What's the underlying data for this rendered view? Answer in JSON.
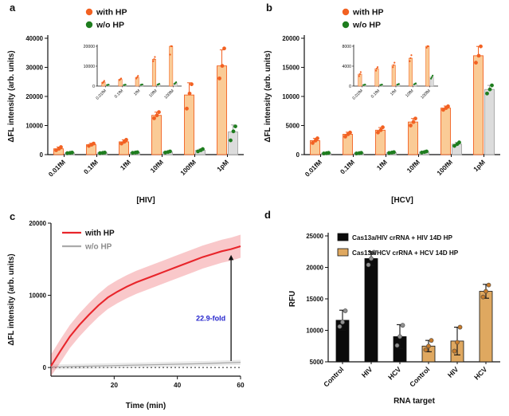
{
  "panels": {
    "a": {
      "label": "a"
    },
    "b": {
      "label": "b"
    },
    "c": {
      "label": "c"
    },
    "d": {
      "label": "d"
    }
  },
  "chart_data": [
    {
      "id": "a",
      "type": "grouped_bar_scatter",
      "xlabel": "[HIV]",
      "ylabel": "ΔFL intensity (arb. units)",
      "categories": [
        "0.01fM",
        "0.1fM",
        "1fM",
        "10fM",
        "100fM",
        "1pM"
      ],
      "ylim": [
        0,
        40000
      ],
      "yticks": [
        0,
        10000,
        20000,
        30000,
        40000
      ],
      "legend": [
        {
          "label": "with HP",
          "color": "#F26122"
        },
        {
          "label": "w/o HP",
          "color": "#1E7D1E"
        }
      ],
      "series": [
        {
          "name": "with HP",
          "bar_color": "#FACB96",
          "bar_edge": "#F26122",
          "dot_color": "#F26122",
          "means": [
            2000,
            3400,
            4400,
            13500,
            20500,
            30500
          ],
          "errors": [
            600,
            500,
            700,
            1100,
            4200,
            5500
          ],
          "replicates": [
            [
              1500,
              2000,
              2600
            ],
            [
              3000,
              3400,
              3800
            ],
            [
              3800,
              4400,
              5100
            ],
            [
              12500,
              13500,
              14600
            ],
            [
              15800,
              21000,
              24200
            ],
            [
              26200,
              30500,
              36500
            ]
          ]
        },
        {
          "name": "w/o HP",
          "bar_color": "#DCDCDC",
          "bar_edge": "#A6A6A6",
          "dot_color": "#1E7D1E",
          "means": [
            600,
            600,
            700,
            900,
            1500,
            7800
          ],
          "errors": [
            150,
            150,
            200,
            250,
            400,
            2400
          ],
          "replicates": [
            [
              500,
              600,
              700
            ],
            [
              500,
              600,
              700
            ],
            [
              600,
              700,
              800
            ],
            [
              700,
              900,
              1100
            ],
            [
              1100,
              1500,
              1900
            ],
            [
              4900,
              8000,
              9700
            ]
          ]
        }
      ],
      "inset": {
        "ylim": [
          0,
          20000
        ],
        "yticks": [
          0,
          10000,
          20000
        ],
        "n_categories": 5
      }
    },
    {
      "id": "b",
      "type": "grouped_bar_scatter",
      "xlabel": "[HCV]",
      "ylabel": "ΔFL intensity (arb. units)",
      "categories": [
        "0.01fM",
        "0.1fM",
        "1fM",
        "10fM",
        "100fM",
        "1pM"
      ],
      "ylim": [
        0,
        20000
      ],
      "yticks": [
        0,
        5000,
        10000,
        15000,
        20000
      ],
      "legend": [
        {
          "label": "with HP",
          "color": "#F26122"
        },
        {
          "label": "w/o HP",
          "color": "#1E7D1E"
        }
      ],
      "series": [
        {
          "name": "with HP",
          "bar_color": "#FACB96",
          "bar_edge": "#F26122",
          "dot_color": "#F26122",
          "means": [
            2400,
            3500,
            4200,
            5600,
            8000,
            17000
          ],
          "errors": [
            400,
            350,
            450,
            600,
            350,
            1600
          ],
          "replicates": [
            [
              2000,
              2400,
              2800
            ],
            [
              3100,
              3500,
              3800
            ],
            [
              3800,
              4200,
              4700
            ],
            [
              5000,
              5600,
              6200
            ],
            [
              7700,
              8000,
              8300
            ],
            [
              15800,
              17000,
              18600
            ]
          ]
        },
        {
          "name": "w/o HP",
          "bar_color": "#DCDCDC",
          "bar_edge": "#A6A6A6",
          "dot_color": "#1E7D1E",
          "means": [
            250,
            250,
            350,
            450,
            1800,
            11200
          ],
          "errors": [
            80,
            80,
            100,
            150,
            300,
            700
          ],
          "replicates": [
            [
              200,
              250,
              300
            ],
            [
              200,
              250,
              300
            ],
            [
              280,
              350,
              420
            ],
            [
              350,
              450,
              550
            ],
            [
              1500,
              1800,
              2100
            ],
            [
              10500,
              11200,
              11900
            ]
          ]
        }
      ],
      "inset": {
        "ylim": [
          0,
          8000
        ],
        "yticks": [
          0,
          4000,
          8000
        ],
        "n_categories": 5
      }
    },
    {
      "id": "c",
      "type": "line",
      "xlabel": "Time (min)",
      "ylabel": "ΔFL intensity (arb. units)",
      "xlim": [
        0,
        60
      ],
      "xticks": [
        20,
        40,
        60
      ],
      "ylim": [
        -1200,
        20000
      ],
      "yticks": [
        0,
        10000,
        20000
      ],
      "baseline": 0,
      "legend": [
        {
          "label": "with HP",
          "color": "#E8252B",
          "text_color": "#111111"
        },
        {
          "label": "w/o HP",
          "color": "#ABABAB",
          "text_color": "#8C8C8C"
        }
      ],
      "annotation": {
        "text": "22.9-fold",
        "color": "#2323CC",
        "x": 57,
        "from": 900,
        "to": 15600,
        "label_y": 6500
      },
      "series": [
        {
          "name": "with HP",
          "color": "#E8252B",
          "band": 1600,
          "x": [
            0,
            3,
            6,
            9,
            12,
            15,
            18,
            21,
            24,
            27,
            30,
            33,
            36,
            39,
            42,
            45,
            48,
            51,
            54,
            57,
            60
          ],
          "y": [
            200,
            2300,
            4300,
            5900,
            7300,
            8600,
            9700,
            10500,
            11200,
            11800,
            12300,
            12800,
            13300,
            13800,
            14300,
            14800,
            15300,
            15700,
            16100,
            16400,
            16800
          ]
        },
        {
          "name": "w/o HP",
          "color": "#ABABAB",
          "band": 350,
          "x": [
            0,
            10,
            20,
            30,
            40,
            50,
            60
          ],
          "y": [
            60,
            160,
            260,
            360,
            460,
            560,
            720
          ]
        }
      ]
    },
    {
      "id": "d",
      "type": "bar_scatter",
      "xlabel": "RNA target",
      "ylabel": "RFU",
      "categories": [
        "Control",
        "HIV",
        "HCV",
        "Control",
        "HIV",
        "HCV"
      ],
      "ylim": [
        5000,
        25000
      ],
      "yticks": [
        5000,
        10000,
        15000,
        20000,
        25000
      ],
      "legend": [
        {
          "label": "Cas13a/HIV crRNA + HIV 14D HP",
          "color": "#0B0B0B"
        },
        {
          "label": "Cas13a/HCV crRNA + HCV 14D HP",
          "color": "#DFA860"
        }
      ],
      "bars": [
        {
          "value": 11600,
          "error": 1600,
          "color": "#0B0B0B",
          "dot_color": "#909090",
          "replicates": [
            10600,
            11300,
            13100
          ]
        },
        {
          "value": 21400,
          "error": 1100,
          "color": "#0B0B0B",
          "dot_color": "#909090",
          "replicates": [
            20400,
            21400,
            22400
          ]
        },
        {
          "value": 9000,
          "error": 1900,
          "color": "#0B0B0B",
          "dot_color": "#909090",
          "replicates": [
            7600,
            9000,
            10800
          ]
        },
        {
          "value": 7500,
          "error": 900,
          "color": "#DFA860",
          "dot_color": "#C77B2B",
          "replicates": [
            6900,
            7500,
            8400
          ]
        },
        {
          "value": 8300,
          "error": 2200,
          "color": "#DFA860",
          "dot_color": "#C77B2B",
          "replicates": [
            6700,
            8100,
            10500
          ]
        },
        {
          "value": 16200,
          "error": 1100,
          "color": "#DFA860",
          "dot_color": "#C77B2B",
          "replicates": [
            15300,
            16200,
            17200
          ]
        }
      ]
    }
  ]
}
